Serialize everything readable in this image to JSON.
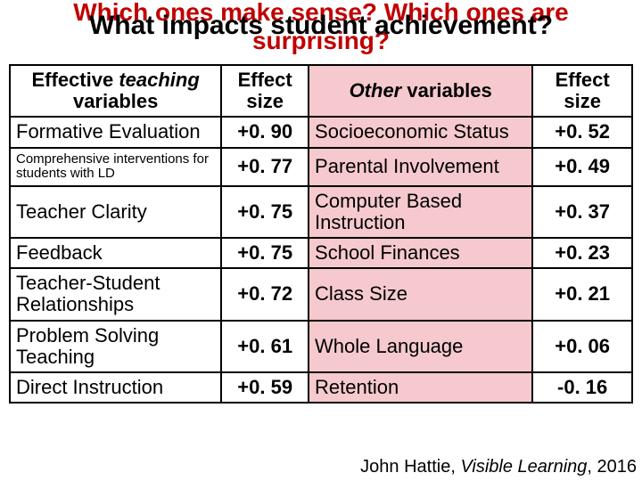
{
  "titles": {
    "back_line1": "Which ones make sense? Which ones are",
    "back_line2": "surprising?",
    "front": "What impacts student achievement?"
  },
  "headers": {
    "col_a_pre": "Effective ",
    "col_a_em": "teaching",
    "col_a_post": " variables",
    "col_b": "Effect size",
    "col_c_pre": "Other",
    "col_c_post": " variables",
    "col_d": "Effect size"
  },
  "rows": [
    {
      "a": "Formative Evaluation",
      "b": "+0. 90",
      "c": "Socioeconomic Status",
      "d": "+0. 52"
    },
    {
      "a": "Comprehensive interventions for students with LD",
      "b": "+0. 77",
      "c": "Parental Involvement",
      "d": "+0. 49"
    },
    {
      "a": "Teacher Clarity",
      "b": "+0. 75",
      "c": "Computer Based Instruction",
      "d": "+0. 37"
    },
    {
      "a": "Feedback",
      "b": "+0. 75",
      "c": "School Finances",
      "d": "+0. 23"
    },
    {
      "a": "Teacher-Student Relationships",
      "b": "+0. 72",
      "c": "Class Size",
      "d": "+0. 21"
    },
    {
      "a": "Problem Solving Teaching",
      "b": "+0. 61",
      "c": "Whole Language",
      "d": "+0. 06"
    },
    {
      "a": "Direct Instruction",
      "b": "+0. 59",
      "c": "Retention",
      "d": "-0. 16"
    }
  ],
  "citation": {
    "pre": "John Hattie, ",
    "it": "Visible Learning",
    "post": ", 2016"
  },
  "colors": {
    "highlight_bg": "#f5c9cd",
    "title_back": "#c00000",
    "border": "#000000"
  }
}
